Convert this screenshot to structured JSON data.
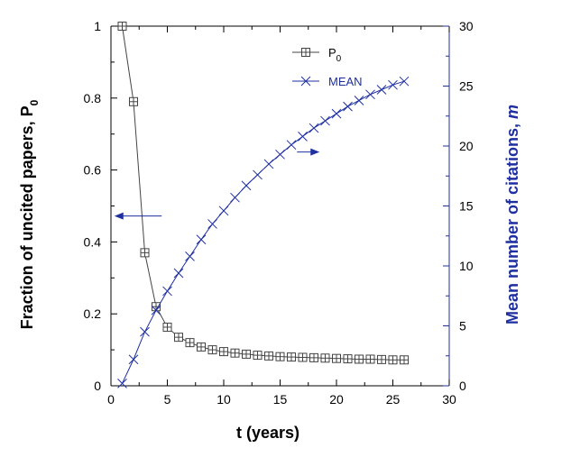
{
  "chart_data": {
    "type": "line",
    "xlabel": "t (years)",
    "ylabel_left": {
      "main": "Fraction of uncited papers, P",
      "sub": "0"
    },
    "ylabel_right": {
      "main": "Mean number of citations, ",
      "italic": "m"
    },
    "xlim": [
      0,
      30
    ],
    "ylim_left": [
      0,
      1
    ],
    "ylim_right": [
      0,
      30
    ],
    "x_ticks": [
      "0",
      "5",
      "10",
      "15",
      "20",
      "25",
      "30"
    ],
    "y_left_ticks": [
      "0",
      "0.2",
      "0.4",
      "0.6",
      "0.8",
      "1"
    ],
    "y_right_ticks": [
      "0",
      "5",
      "10",
      "15",
      "20",
      "25",
      "30"
    ],
    "legend_placement": "top-center",
    "grid": false,
    "series": [
      {
        "name": "P",
        "name_sub": "0",
        "axis": "left",
        "color": "#444444",
        "marker": "square-plus",
        "x": [
          1,
          2,
          3,
          4,
          5,
          6,
          7,
          8,
          9,
          10,
          11,
          12,
          13,
          14,
          15,
          16,
          17,
          18,
          19,
          20,
          21,
          22,
          23,
          24,
          25,
          26
        ],
        "y": [
          1.0,
          0.79,
          0.37,
          0.22,
          0.163,
          0.135,
          0.12,
          0.108,
          0.1,
          0.095,
          0.091,
          0.088,
          0.085,
          0.083,
          0.081,
          0.08,
          0.079,
          0.078,
          0.077,
          0.076,
          0.075,
          0.074,
          0.074,
          0.073,
          0.072,
          0.072
        ]
      },
      {
        "name": "MEAN",
        "axis": "right",
        "color": "#1e2fa0",
        "marker": "x",
        "x": [
          1,
          2,
          3,
          4,
          5,
          6,
          7,
          8,
          9,
          10,
          11,
          12,
          13,
          14,
          15,
          16,
          17,
          18,
          19,
          20,
          21,
          22,
          23,
          24,
          25,
          26
        ],
        "y": [
          0.2,
          2.2,
          4.5,
          6.3,
          7.9,
          9.4,
          10.8,
          12.2,
          13.5,
          14.6,
          15.7,
          16.7,
          17.6,
          18.5,
          19.3,
          20.1,
          20.8,
          21.5,
          22.1,
          22.7,
          23.3,
          23.8,
          24.3,
          24.7,
          25.1,
          25.4
        ]
      }
    ],
    "annotations": [
      {
        "type": "arrow",
        "direction": "left",
        "target": "left-axis",
        "at": {
          "x": 4.5,
          "y_left": 0.472
        },
        "to_x": 0.3,
        "color": "#1e2fa0"
      },
      {
        "type": "arrow",
        "direction": "right",
        "target": "right-axis",
        "at": {
          "x": 18.5,
          "y_right": 19.5
        },
        "from_x": 16.5,
        "color": "#1e2fa0"
      }
    ]
  }
}
